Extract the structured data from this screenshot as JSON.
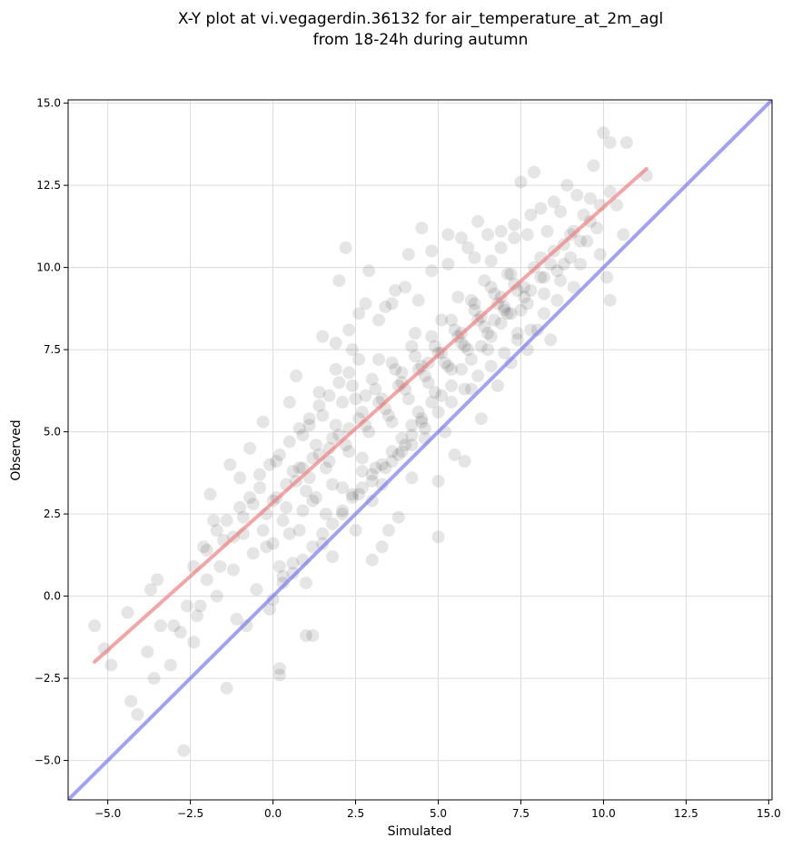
{
  "chart_data": {
    "type": "scatter",
    "title": [
      "X-Y plot at vi.vegagerdin.36132 for air_temperature_at_2m_agl",
      "from 18-24h during autumn"
    ],
    "xlabel": "Simulated",
    "ylabel": "Observed",
    "xlim": [
      -6.2,
      15.1
    ],
    "ylim": [
      -6.2,
      15.1
    ],
    "xticks": [
      -5.0,
      -2.5,
      0.0,
      2.5,
      5.0,
      7.5,
      10.0,
      12.5,
      15.0
    ],
    "yticks": [
      -5.0,
      -2.5,
      0.0,
      2.5,
      5.0,
      7.5,
      10.0,
      12.5,
      15.0
    ],
    "xtick_labels": [
      "−5.0",
      "−2.5",
      "0.0",
      "2.5",
      "5.0",
      "7.5",
      "10.0",
      "12.5",
      "15.0"
    ],
    "ytick_labels": [
      "−5.0",
      "−2.5",
      "0.0",
      "2.5",
      "5.0",
      "7.5",
      "10.0",
      "12.5",
      "15.0"
    ],
    "grid": true,
    "point_color": "#000000",
    "fit_line": {
      "color": "#f08080",
      "x": [
        -5.4,
        11.3
      ],
      "y": [
        -2.0,
        13.0
      ]
    },
    "identity_line": {
      "color": "#7b7bf0",
      "x": [
        -6.2,
        15.1
      ],
      "y": [
        -6.2,
        15.1
      ]
    },
    "points": [
      [
        -5.4,
        -0.9
      ],
      [
        -5.1,
        -1.6
      ],
      [
        -4.9,
        -2.1
      ],
      [
        -4.4,
        -0.5
      ],
      [
        -4.3,
        -3.2
      ],
      [
        -4.1,
        -3.6
      ],
      [
        -3.8,
        -1.7
      ],
      [
        -3.7,
        0.2
      ],
      [
        -3.6,
        -2.5
      ],
      [
        -3.5,
        0.5
      ],
      [
        -3.4,
        -0.9
      ],
      [
        -3.1,
        -2.1
      ],
      [
        -3.0,
        -0.9
      ],
      [
        -2.8,
        -1.1
      ],
      [
        -2.7,
        -4.7
      ],
      [
        -2.6,
        -0.3
      ],
      [
        -2.4,
        -1.4
      ],
      [
        -2.4,
        0.9
      ],
      [
        -2.3,
        -0.6
      ],
      [
        -2.2,
        -0.3
      ],
      [
        -2.1,
        1.5
      ],
      [
        -2.0,
        0.5
      ],
      [
        -1.9,
        3.1
      ],
      [
        -1.8,
        2.3
      ],
      [
        -1.7,
        0.0
      ],
      [
        -1.5,
        1.7
      ],
      [
        -1.4,
        -2.8
      ],
      [
        -1.3,
        4.0
      ],
      [
        -1.2,
        0.8
      ],
      [
        -1.1,
        -0.7
      ],
      [
        -1.0,
        3.6
      ],
      [
        -0.9,
        1.9
      ],
      [
        -0.8,
        -0.9
      ],
      [
        -0.7,
        4.5
      ],
      [
        -0.6,
        2.8
      ],
      [
        -0.5,
        0.2
      ],
      [
        -0.4,
        3.3
      ],
      [
        -0.3,
        5.3
      ],
      [
        -0.2,
        1.5
      ],
      [
        -0.1,
        -0.4
      ],
      [
        0.0,
        2.9
      ],
      [
        0.1,
        4.1
      ],
      [
        0.2,
        -2.2
      ],
      [
        0.2,
        -2.4
      ],
      [
        0.3,
        0.6
      ],
      [
        0.4,
        3.4
      ],
      [
        0.5,
        5.9
      ],
      [
        0.6,
        1.0
      ],
      [
        0.7,
        6.7
      ],
      [
        0.8,
        2.0
      ],
      [
        0.9,
        3.9
      ],
      [
        1.0,
        -1.2
      ],
      [
        1.0,
        0.4
      ],
      [
        1.1,
        5.2
      ],
      [
        1.2,
        -1.2
      ],
      [
        1.3,
        3.0
      ],
      [
        1.4,
        6.2
      ],
      [
        1.5,
        7.9
      ],
      [
        1.6,
        2.5
      ],
      [
        1.7,
        4.5
      ],
      [
        1.8,
        1.2
      ],
      [
        1.9,
        6.9
      ],
      [
        2.0,
        9.6
      ],
      [
        2.1,
        3.3
      ],
      [
        2.2,
        10.6
      ],
      [
        2.3,
        5.1
      ],
      [
        2.4,
        7.5
      ],
      [
        2.5,
        2.0
      ],
      [
        2.6,
        8.6
      ],
      [
        2.7,
        4.2
      ],
      [
        2.8,
        6.1
      ],
      [
        2.9,
        9.9
      ],
      [
        3.0,
        1.1
      ],
      [
        3.1,
        3.9
      ],
      [
        3.2,
        7.2
      ],
      [
        3.3,
        1.5
      ],
      [
        3.4,
        8.8
      ],
      [
        3.5,
        2.0
      ],
      [
        3.6,
        5.3
      ],
      [
        3.7,
        9.3
      ],
      [
        3.8,
        2.4
      ],
      [
        3.9,
        6.8
      ],
      [
        4.0,
        4.6
      ],
      [
        4.1,
        10.4
      ],
      [
        4.2,
        3.6
      ],
      [
        4.3,
        8.0
      ],
      [
        4.4,
        5.6
      ],
      [
        4.5,
        11.2
      ],
      [
        4.6,
        4.8
      ],
      [
        4.7,
        7.1
      ],
      [
        4.8,
        9.9
      ],
      [
        4.9,
        6.2
      ],
      [
        5.0,
        3.5
      ],
      [
        5.0,
        1.8
      ],
      [
        5.1,
        8.4
      ],
      [
        5.2,
        5.0
      ],
      [
        5.3,
        11.0
      ],
      [
        5.4,
        6.9
      ],
      [
        5.5,
        4.3
      ],
      [
        5.6,
        9.1
      ],
      [
        5.7,
        7.7
      ],
      [
        5.8,
        4.1
      ],
      [
        5.9,
        10.6
      ],
      [
        6.0,
        6.3
      ],
      [
        6.1,
        8.9
      ],
      [
        6.2,
        11.4
      ],
      [
        6.3,
        5.4
      ],
      [
        6.4,
        9.6
      ],
      [
        6.5,
        7.5
      ],
      [
        6.6,
        10.2
      ],
      [
        6.7,
        8.4
      ],
      [
        6.8,
        6.4
      ],
      [
        6.9,
        11.1
      ],
      [
        7.0,
        8.7
      ],
      [
        7.1,
        9.8
      ],
      [
        7.2,
        7.1
      ],
      [
        7.3,
        10.9
      ],
      [
        7.4,
        8.0
      ],
      [
        7.5,
        12.6
      ],
      [
        7.6,
        9.4
      ],
      [
        7.7,
        7.5
      ],
      [
        7.8,
        11.6
      ],
      [
        7.9,
        12.9
      ],
      [
        8.0,
        8.1
      ],
      [
        8.1,
        10.3
      ],
      [
        8.2,
        9.2
      ],
      [
        8.3,
        11.1
      ],
      [
        8.4,
        7.8
      ],
      [
        8.5,
        12.0
      ],
      [
        8.6,
        9.9
      ],
      [
        8.7,
        11.7
      ],
      [
        8.8,
        10.7
      ],
      [
        8.9,
        12.5
      ],
      [
        9.0,
        11.0
      ],
      [
        9.1,
        9.4
      ],
      [
        9.2,
        12.2
      ],
      [
        9.3,
        10.1
      ],
      [
        9.4,
        11.6
      ],
      [
        9.5,
        10.8
      ],
      [
        9.6,
        12.1
      ],
      [
        9.7,
        13.1
      ],
      [
        9.8,
        11.2
      ],
      [
        9.9,
        10.4
      ],
      [
        10.0,
        14.1
      ],
      [
        10.1,
        9.7
      ],
      [
        10.2,
        13.8
      ],
      [
        10.2,
        9.0
      ],
      [
        10.4,
        11.9
      ],
      [
        10.6,
        11.0
      ],
      [
        10.7,
        13.8
      ],
      [
        11.3,
        12.8
      ],
      [
        0.3,
        2.3
      ],
      [
        0.6,
        3.8
      ],
      [
        0.9,
        4.9
      ],
      [
        1.2,
        4.2
      ],
      [
        1.5,
        5.5
      ],
      [
        1.8,
        4.8
      ],
      [
        2.1,
        5.9
      ],
      [
        2.4,
        6.4
      ],
      [
        2.7,
        5.6
      ],
      [
        3.0,
        6.6
      ],
      [
        3.3,
        6.0
      ],
      [
        3.6,
        7.1
      ],
      [
        3.9,
        6.5
      ],
      [
        4.2,
        7.6
      ],
      [
        4.5,
        7.0
      ],
      [
        4.8,
        7.9
      ],
      [
        5.1,
        7.4
      ],
      [
        5.4,
        8.4
      ],
      [
        5.7,
        8.0
      ],
      [
        6.0,
        9.0
      ],
      [
        6.3,
        8.5
      ],
      [
        6.6,
        9.4
      ],
      [
        6.9,
        9.1
      ],
      [
        7.2,
        9.8
      ],
      [
        -0.2,
        2.5
      ],
      [
        0.1,
        3.0
      ],
      [
        0.4,
        2.7
      ],
      [
        0.7,
        3.5
      ],
      [
        1.0,
        3.2
      ],
      [
        1.3,
        4.6
      ],
      [
        1.6,
        3.9
      ],
      [
        1.9,
        5.2
      ],
      [
        2.2,
        4.6
      ],
      [
        2.5,
        6.0
      ],
      [
        2.8,
        5.2
      ],
      [
        3.1,
        6.3
      ],
      [
        3.4,
        5.7
      ],
      [
        3.7,
        6.9
      ],
      [
        4.0,
        6.3
      ],
      [
        4.3,
        7.3
      ],
      [
        4.6,
        6.7
      ],
      [
        4.9,
        7.6
      ],
      [
        5.2,
        7.1
      ],
      [
        5.5,
        8.1
      ],
      [
        5.8,
        7.6
      ],
      [
        6.1,
        8.7
      ],
      [
        6.4,
        8.2
      ],
      [
        6.7,
        9.2
      ],
      [
        7.0,
        8.8
      ],
      [
        7.3,
        9.5
      ],
      [
        7.6,
        9.1
      ],
      [
        7.9,
        10.0
      ],
      [
        8.2,
        9.7
      ],
      [
        8.5,
        10.5
      ],
      [
        8.8,
        10.1
      ],
      [
        9.1,
        11.1
      ],
      [
        0.8,
        3.9
      ],
      [
        1.1,
        3.6
      ],
      [
        1.4,
        4.3
      ],
      [
        1.7,
        4.1
      ],
      [
        2.0,
        4.9
      ],
      [
        2.3,
        4.4
      ],
      [
        2.6,
        5.4
      ],
      [
        2.9,
        5.0
      ],
      [
        3.2,
        5.9
      ],
      [
        3.5,
        5.5
      ],
      [
        3.8,
        6.4
      ],
      [
        4.1,
        6.0
      ],
      [
        4.4,
        6.9
      ],
      [
        4.7,
        6.5
      ],
      [
        5.0,
        7.4
      ],
      [
        5.3,
        7.0
      ],
      [
        5.6,
        7.9
      ],
      [
        5.9,
        7.5
      ],
      [
        6.2,
        8.4
      ],
      [
        6.5,
        8.0
      ],
      [
        6.8,
        8.9
      ],
      [
        7.1,
        8.6
      ],
      [
        7.4,
        9.3
      ],
      [
        7.7,
        8.9
      ],
      [
        -1.6,
        0.9
      ],
      [
        -1.2,
        1.8
      ],
      [
        -0.9,
        2.4
      ],
      [
        -0.6,
        1.3
      ],
      [
        -0.3,
        2.0
      ],
      [
        0.0,
        1.6
      ],
      [
        0.2,
        0.9
      ],
      [
        0.5,
        1.9
      ],
      [
        0.9,
        2.6
      ],
      [
        1.2,
        2.9
      ],
      [
        1.5,
        1.6
      ],
      [
        1.8,
        3.4
      ],
      [
        2.1,
        2.6
      ],
      [
        2.4,
        3.1
      ],
      [
        2.7,
        3.8
      ],
      [
        3.0,
        2.9
      ],
      [
        3.3,
        3.4
      ],
      [
        3.6,
        4.1
      ],
      [
        3.9,
        4.4
      ],
      [
        4.2,
        4.9
      ],
      [
        4.5,
        5.3
      ],
      [
        4.8,
        5.9
      ],
      [
        5.1,
        6.1
      ],
      [
        5.4,
        6.4
      ],
      [
        5.7,
        6.9
      ],
      [
        6.0,
        7.2
      ],
      [
        6.3,
        7.6
      ],
      [
        6.6,
        7.9
      ],
      [
        6.9,
        8.3
      ],
      [
        7.2,
        8.6
      ],
      [
        7.5,
        8.7
      ],
      [
        7.8,
        9.3
      ],
      [
        8.1,
        9.7
      ],
      [
        8.4,
        10.1
      ],
      [
        8.7,
        9.6
      ],
      [
        9.0,
        10.3
      ],
      [
        9.3,
        10.8
      ],
      [
        9.6,
        11.4
      ],
      [
        9.9,
        11.9
      ],
      [
        10.2,
        12.3
      ],
      [
        1.9,
        7.7
      ],
      [
        2.3,
        8.1
      ],
      [
        2.8,
        8.9
      ],
      [
        3.2,
        8.4
      ],
      [
        3.6,
        8.9
      ],
      [
        4.0,
        9.4
      ],
      [
        4.4,
        9.0
      ],
      [
        4.8,
        10.5
      ],
      [
        5.3,
        10.1
      ],
      [
        5.7,
        10.9
      ],
      [
        6.1,
        10.3
      ],
      [
        6.5,
        11.0
      ],
      [
        6.9,
        10.6
      ],
      [
        7.3,
        11.3
      ],
      [
        7.7,
        11.0
      ],
      [
        8.1,
        11.8
      ],
      [
        2.6,
        3.1
      ],
      [
        3.0,
        3.5
      ],
      [
        3.4,
        3.9
      ],
      [
        3.8,
        4.3
      ],
      [
        4.2,
        4.6
      ],
      [
        4.6,
        5.1
      ],
      [
        5.0,
        5.6
      ],
      [
        5.4,
        5.9
      ],
      [
        5.8,
        6.3
      ],
      [
        6.2,
        6.7
      ],
      [
        6.6,
        7.0
      ],
      [
        7.0,
        7.4
      ],
      [
        7.4,
        7.8
      ],
      [
        7.8,
        8.1
      ],
      [
        8.2,
        8.6
      ],
      [
        8.6,
        9.0
      ],
      [
        -2.0,
        1.4
      ],
      [
        -1.7,
        2.0
      ],
      [
        -1.4,
        2.3
      ],
      [
        -1.0,
        2.7
      ],
      [
        -0.7,
        3.0
      ],
      [
        -0.4,
        3.7
      ],
      [
        -0.1,
        4.0
      ],
      [
        0.2,
        4.3
      ],
      [
        0.5,
        4.7
      ],
      [
        0.8,
        5.1
      ],
      [
        1.1,
        5.4
      ],
      [
        1.4,
        5.8
      ],
      [
        1.7,
        6.1
      ],
      [
        2.0,
        6.5
      ],
      [
        2.3,
        6.8
      ],
      [
        2.6,
        7.2
      ],
      [
        0.0,
        -0.1
      ],
      [
        0.3,
        0.4
      ],
      [
        0.6,
        0.7
      ],
      [
        0.9,
        1.1
      ],
      [
        1.2,
        1.5
      ],
      [
        1.5,
        1.9
      ],
      [
        1.8,
        2.2
      ],
      [
        2.1,
        2.5
      ],
      [
        2.4,
        3.0
      ],
      [
        2.7,
        3.3
      ],
      [
        3.0,
        3.7
      ],
      [
        3.3,
        4.0
      ],
      [
        3.6,
        4.4
      ],
      [
        3.9,
        4.8
      ],
      [
        4.2,
        5.2
      ],
      [
        4.5,
        5.4
      ]
    ]
  }
}
